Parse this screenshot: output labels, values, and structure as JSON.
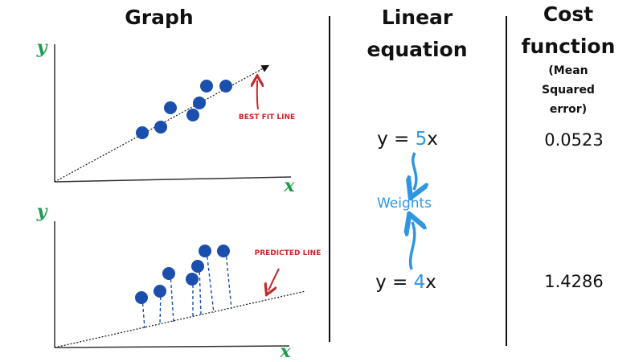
{
  "columns": {
    "graph": {
      "title": "Graph",
      "top_plot": {
        "y_label": "y",
        "x_label": "x",
        "annotation": "BEST FIT LINE"
      },
      "bottom_plot": {
        "y_label": "y",
        "x_label": "x",
        "annotation": "PREDICTED LINE"
      }
    },
    "linear_equation": {
      "title": "Linear equation",
      "equations": [
        {
          "prefix": "y = ",
          "weight": "5",
          "suffix": "x"
        },
        {
          "prefix": "y = ",
          "weight": "4",
          "suffix": "x"
        }
      ],
      "label": "Weights"
    },
    "cost_function": {
      "title": "Cost function",
      "subtitle": "(Mean Squared error)",
      "values": [
        "0.0523",
        "1.4286"
      ]
    }
  }
}
